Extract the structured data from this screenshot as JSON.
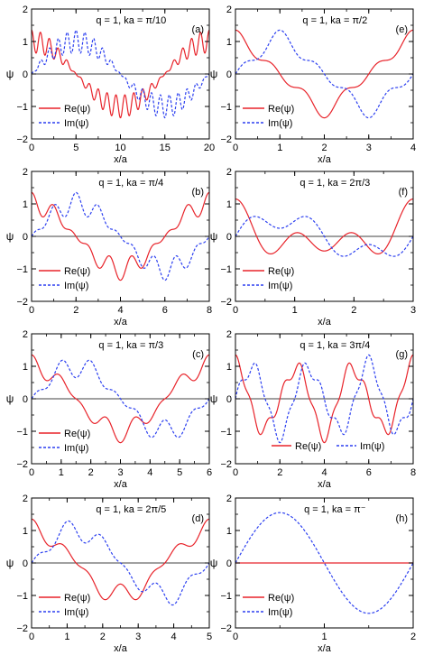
{
  "figure": {
    "y_axis_label": "ψ",
    "x_axis_label": "x/a"
  },
  "colors": {
    "re": "#e8232a",
    "im": "#2b3ff0",
    "zero_line": "#000000"
  },
  "chart_data": [
    {
      "panel": "(a)",
      "type": "line",
      "annotation": "q = 1, ka = π/10",
      "xlabel": "x/a",
      "ylabel": "ψ",
      "xlim": [
        0,
        20
      ],
      "ylim": [
        -2,
        2
      ],
      "xticks": [
        0,
        5,
        10,
        15,
        20
      ],
      "yticks": [
        -2,
        -1,
        0,
        1,
        2
      ],
      "legend_position": "lower-left",
      "series": [
        {
          "name": "Re(ψ)",
          "style": "solid",
          "function": "cos(k x)·(1 + 0.35 cos 2πx)",
          "ka": 0.314159
        },
        {
          "name": "Im(ψ)",
          "style": "dashed",
          "function": "sin(k x)·(1 + 0.35 cos 2πx)",
          "ka": 0.314159
        }
      ]
    },
    {
      "panel": "(e)",
      "type": "line",
      "annotation": "q = 1, ka = π/2",
      "xlabel": "x/a",
      "ylabel": "ψ",
      "xlim": [
        0,
        4
      ],
      "ylim": [
        -2,
        2
      ],
      "xticks": [
        0,
        1,
        2,
        3,
        4
      ],
      "yticks": [
        -2,
        -1,
        0,
        1,
        2
      ],
      "legend_position": "lower-left",
      "series": [
        {
          "name": "Re(ψ)",
          "style": "solid",
          "function": "cos(k x)·(1 + 0.35 cos 2πx)",
          "ka": 1.570796
        },
        {
          "name": "Im(ψ)",
          "style": "dashed",
          "function": "sin(k x)·(1 + 0.35 cos 2πx)",
          "ka": 1.570796
        }
      ]
    },
    {
      "panel": "(b)",
      "type": "line",
      "annotation": "q = 1, ka = π/4",
      "xlabel": "x/a",
      "ylabel": "ψ",
      "xlim": [
        0,
        8
      ],
      "ylim": [
        -2,
        2
      ],
      "xticks": [
        0,
        2,
        4,
        6,
        8
      ],
      "yticks": [
        -2,
        -1,
        0,
        1,
        2
      ],
      "legend_position": "lower-left",
      "series": [
        {
          "name": "Re(ψ)",
          "style": "solid",
          "function": "cos(k x)·(1 + 0.35 cos 2πx)",
          "ka": 0.785398
        },
        {
          "name": "Im(ψ)",
          "style": "dashed",
          "function": "sin(k x)·(1 + 0.35 cos 2πx)",
          "ka": 0.785398
        }
      ]
    },
    {
      "panel": "(f)",
      "type": "line",
      "annotation": "q = 1, ka = 2π/3",
      "xlabel": "x/a",
      "ylabel": "ψ",
      "xlim": [
        0,
        3
      ],
      "ylim": [
        -2,
        2
      ],
      "xticks": [
        0,
        1,
        2,
        3
      ],
      "yticks": [
        -2,
        -1,
        0,
        1,
        2
      ],
      "legend_position": "lower-left",
      "series": [
        {
          "name": "Re(ψ)",
          "style": "solid",
          "function": "0.35 cos(k x) + 0.35 cos((k−2π) x) + 0.45 cos(2π x)",
          "ka": 2.094395
        },
        {
          "name": "Im(ψ)",
          "style": "dashed",
          "function": "0.55 sin(k x) + 0.3 sin(2π x)",
          "ka": 2.094395
        }
      ]
    },
    {
      "panel": "(c)",
      "type": "line",
      "annotation": "q = 1, ka = π/3",
      "xlabel": "x/a",
      "ylabel": "ψ",
      "xlim": [
        0,
        6
      ],
      "ylim": [
        -2,
        2
      ],
      "xticks": [
        0,
        1,
        2,
        3,
        4,
        5,
        6
      ],
      "yticks": [
        -2,
        -1,
        0,
        1,
        2
      ],
      "legend_position": "lower-left",
      "series": [
        {
          "name": "Re(ψ)",
          "style": "solid",
          "function": "cos(k x)·(1 + 0.35 cos 2πx)",
          "ka": 1.047198
        },
        {
          "name": "Im(ψ)",
          "style": "dashed",
          "function": "sin(k x)·(1 + 0.35 cos 2πx)",
          "ka": 1.047198
        }
      ]
    },
    {
      "panel": "(g)",
      "type": "line",
      "annotation": "q = 1, ka = 3π/4",
      "xlabel": "x/a",
      "ylabel": "ψ",
      "xlim": [
        0,
        8
      ],
      "ylim": [
        -2,
        2
      ],
      "xticks": [
        0,
        2,
        4,
        6,
        8
      ],
      "yticks": [
        -2,
        -1,
        0,
        1,
        2
      ],
      "legend_position": "bottom-center",
      "series": [
        {
          "name": "Re(ψ)",
          "style": "solid",
          "function": "cos(k x)·(1 + 0.35 cos 2πx)",
          "ka": 2.356194
        },
        {
          "name": "Im(ψ)",
          "style": "dashed",
          "function": "sin(k x)·(1 + 0.35 cos 2πx)",
          "ka": 2.356194
        }
      ]
    },
    {
      "panel": "(d)",
      "type": "line",
      "annotation": "q = 1, ka = 2π/5",
      "xlabel": "x/a",
      "ylabel": "ψ",
      "xlim": [
        0,
        5
      ],
      "ylim": [
        -2,
        2
      ],
      "xticks": [
        0,
        1,
        2,
        3,
        4,
        5
      ],
      "yticks": [
        -2,
        -1,
        0,
        1,
        2
      ],
      "legend_position": "lower-left",
      "series": [
        {
          "name": "Re(ψ)",
          "style": "solid",
          "function": "cos(k x)·(1 + 0.35 cos 2πx)",
          "ka": 1.256637
        },
        {
          "name": "Im(ψ)",
          "style": "dashed",
          "function": "sin(k x)·(1 + 0.35 cos 2πx)",
          "ka": 1.256637
        }
      ]
    },
    {
      "panel": "(h)",
      "type": "line",
      "annotation": "q = 1, ka = π⁻",
      "xlabel": "x/a",
      "ylabel": "ψ",
      "xlim": [
        0,
        2
      ],
      "ylim": [
        -2,
        2
      ],
      "xticks": [
        0,
        1,
        2
      ],
      "yticks": [
        -2,
        -1,
        0,
        1,
        2
      ],
      "legend_position": "lower-left",
      "series": [
        {
          "name": "Re(ψ)",
          "style": "solid",
          "function": "0",
          "ka": 3.141593
        },
        {
          "name": "Im(ψ)",
          "style": "dashed",
          "function": "1.55 sin(π x)",
          "ka": 3.141593
        }
      ]
    }
  ]
}
